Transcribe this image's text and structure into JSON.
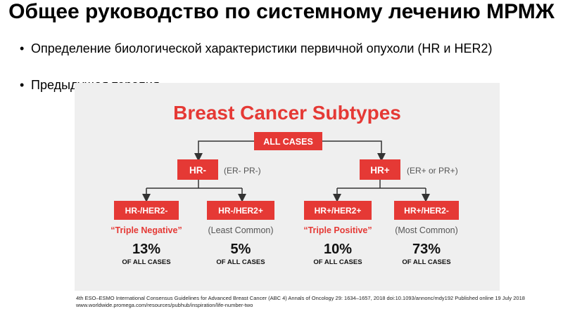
{
  "slide": {
    "title": "Общее руководство по системному лечению МРМЖ",
    "bullets": [
      "Определение биологической характеристики первичной опухоли (HR и HER2)",
      "Предыдущая терапия"
    ]
  },
  "figure": {
    "title": "Breast Cancer Subtypes",
    "root": "ALL CASES",
    "groups": [
      {
        "label": "HR-",
        "note": "(ER- PR-)"
      },
      {
        "label": "HR+",
        "note": "(ER+ or PR+)"
      }
    ],
    "subtypes": [
      {
        "label": "HR-/HER2-",
        "note": "“Triple Negative”",
        "percent": "13%",
        "caption": "OF ALL CASES"
      },
      {
        "label": "HR-/HER2+",
        "note": "(Least Common)",
        "percent": "5%",
        "caption": "OF ALL CASES"
      },
      {
        "label": "HR+/HER2+",
        "note": "“Triple Positive”",
        "percent": "10%",
        "caption": "OF ALL CASES"
      },
      {
        "label": "HR+/HER2-",
        "note": "(Most Common)",
        "percent": "73%",
        "caption": "OF ALL CASES"
      }
    ],
    "colors": {
      "box": "#e53935",
      "title": "#e53935",
      "note": "#555555",
      "quote": "#e53935",
      "arrow": "#333333"
    }
  },
  "footnote": {
    "line1": "4th ESO–ESMO International Consensus Guidelines for Advanced Breast Cancer (ABC 4) Annals of Oncology 29: 1634–1657, 2018 doi:10.1093/annonc/mdy192 Published online 19 July 2018",
    "line2": "www.worldwide.promega.com/resources/pubhub/inspiration/life-number-two"
  }
}
